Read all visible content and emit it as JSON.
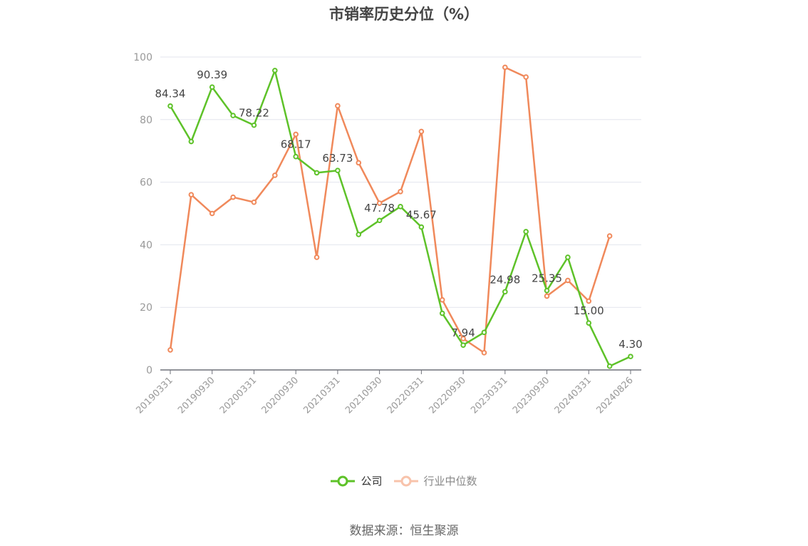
{
  "chart_data": {
    "type": "line",
    "title": "市销率历史分位（%）",
    "ylim": [
      0,
      100
    ],
    "yticks": [
      0,
      20,
      40,
      60,
      80,
      100
    ],
    "x": [
      "20190331",
      "20190630",
      "20190930",
      "20191231",
      "20200331",
      "20200630",
      "20200930",
      "20201231",
      "20210331",
      "20210630",
      "20210930",
      "20211231",
      "20220331",
      "20220630",
      "20220930",
      "20221231",
      "20230331",
      "20230630",
      "20230930",
      "20231231",
      "20240331",
      "20240630",
      "20240826"
    ],
    "xtick_labels": [
      "20190331",
      "20190930",
      "20200331",
      "20200930",
      "20210331",
      "20210930",
      "20220331",
      "20220930",
      "20230331",
      "20230930",
      "20240331",
      "20240826"
    ],
    "grid": true,
    "legend_position": "bottom",
    "series": [
      {
        "name": "公司",
        "color": "#5ec229",
        "values": [
          84.34,
          73.0,
          90.39,
          81.3,
          78.22,
          95.7,
          68.17,
          63.0,
          63.73,
          43.3,
          47.78,
          52.2,
          45.67,
          18.1,
          7.94,
          12.0,
          24.98,
          44.2,
          25.35,
          36.0,
          15.0,
          1.2,
          4.3
        ],
        "label_text": [
          "84.34",
          "",
          "90.39",
          "",
          "78.22",
          "",
          "68.17",
          "",
          "63.73",
          "",
          "47.78",
          "",
          "45.67",
          "",
          "7.94",
          "",
          "24.98",
          "",
          "25.35",
          "",
          "15.00",
          "",
          "4.30"
        ]
      },
      {
        "name": "行业中位数",
        "color": "#f0895b",
        "values": [
          6.4,
          56.0,
          50.0,
          55.2,
          53.6,
          62.2,
          75.3,
          36.0,
          84.4,
          66.2,
          53.3,
          57.0,
          76.2,
          22.4,
          10.0,
          5.5,
          96.7,
          93.6,
          23.6,
          28.6,
          22.0,
          42.8,
          null
        ]
      }
    ]
  },
  "legend": {
    "items": [
      {
        "label": "公司"
      },
      {
        "label": "行业中位数"
      }
    ]
  },
  "source_note": "数据来源：恒生聚源"
}
